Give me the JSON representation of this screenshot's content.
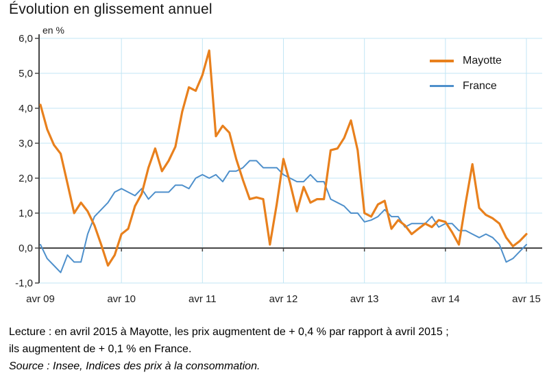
{
  "title": "Évolution en glissement annuel",
  "unit_label": "en %",
  "footer": {
    "lecture": "Lecture : en avril 2015 à Mayotte, les prix augmentent de + 0,4 % par rapport à avril 2015 ;\nils augmentent de + 0,1 % en France.",
    "source": "Source : Insee, Indices des prix à la consommation."
  },
  "colors": {
    "mayotte": "#E8801D",
    "france": "#4D8FCB",
    "gridline": "#C2E6F4",
    "axis": "#454545",
    "text": "#1d1d1d"
  },
  "chart_data": {
    "type": "line",
    "title": "Évolution en glissement annuel",
    "ylabel": "en %",
    "ylim": [
      -1.0,
      6.0
    ],
    "grid": true,
    "legend_position": "top-right",
    "y_ticks": [
      {
        "value": 6.0,
        "label": "6,0"
      },
      {
        "value": 5.0,
        "label": "5,0"
      },
      {
        "value": 4.0,
        "label": "4,0"
      },
      {
        "value": 3.0,
        "label": "3,0"
      },
      {
        "value": 2.0,
        "label": "2,0"
      },
      {
        "value": 1.0,
        "label": "1,0"
      },
      {
        "value": 0.0,
        "label": "0,0"
      },
      {
        "value": -1.0,
        "label": "-1,0"
      }
    ],
    "x_ticks": [
      {
        "index": 0,
        "label": "avr 09"
      },
      {
        "index": 12,
        "label": "avr 10"
      },
      {
        "index": 24,
        "label": "avr 11"
      },
      {
        "index": 36,
        "label": "avr 12"
      },
      {
        "index": 48,
        "label": "avr 13"
      },
      {
        "index": 60,
        "label": "avr 14"
      },
      {
        "index": 72,
        "label": "avr 15"
      }
    ],
    "x_unit": "months from avril 2009 to avril 2015",
    "series": [
      {
        "name": "Mayotte",
        "color": "#E8801D",
        "values": [
          4.1,
          3.4,
          2.95,
          2.7,
          1.85,
          1.0,
          1.3,
          1.05,
          0.65,
          0.1,
          -0.5,
          -0.2,
          0.4,
          0.55,
          1.2,
          1.55,
          2.3,
          2.85,
          2.2,
          2.5,
          2.9,
          3.9,
          4.6,
          4.5,
          4.95,
          5.65,
          3.2,
          3.5,
          3.3,
          2.55,
          1.95,
          1.4,
          1.45,
          1.4,
          0.1,
          1.25,
          2.55,
          1.85,
          1.05,
          1.75,
          1.3,
          1.4,
          1.4,
          2.8,
          2.85,
          3.15,
          3.65,
          2.8,
          1.0,
          0.9,
          1.25,
          1.35,
          0.55,
          0.8,
          0.65,
          0.4,
          0.55,
          0.7,
          0.6,
          0.8,
          0.75,
          0.45,
          0.1,
          1.3,
          2.4,
          1.15,
          0.95,
          0.85,
          0.7,
          0.3,
          0.05,
          0.2,
          0.4
        ]
      },
      {
        "name": "France",
        "color": "#4D8FCB",
        "values": [
          0.1,
          -0.3,
          -0.5,
          -0.7,
          -0.2,
          -0.4,
          -0.4,
          0.4,
          0.9,
          1.1,
          1.3,
          1.6,
          1.7,
          1.6,
          1.5,
          1.7,
          1.4,
          1.6,
          1.6,
          1.6,
          1.8,
          1.8,
          1.7,
          2.0,
          2.1,
          2.0,
          2.1,
          1.9,
          2.2,
          2.2,
          2.3,
          2.5,
          2.5,
          2.3,
          2.3,
          2.3,
          2.1,
          2.0,
          1.9,
          1.9,
          2.1,
          1.9,
          1.9,
          1.4,
          1.3,
          1.2,
          1.0,
          1.0,
          0.75,
          0.8,
          0.9,
          1.1,
          0.9,
          0.9,
          0.6,
          0.7,
          0.7,
          0.7,
          0.9,
          0.6,
          0.7,
          0.7,
          0.5,
          0.5,
          0.4,
          0.3,
          0.4,
          0.3,
          0.1,
          -0.4,
          -0.3,
          -0.1,
          0.1
        ]
      }
    ]
  }
}
